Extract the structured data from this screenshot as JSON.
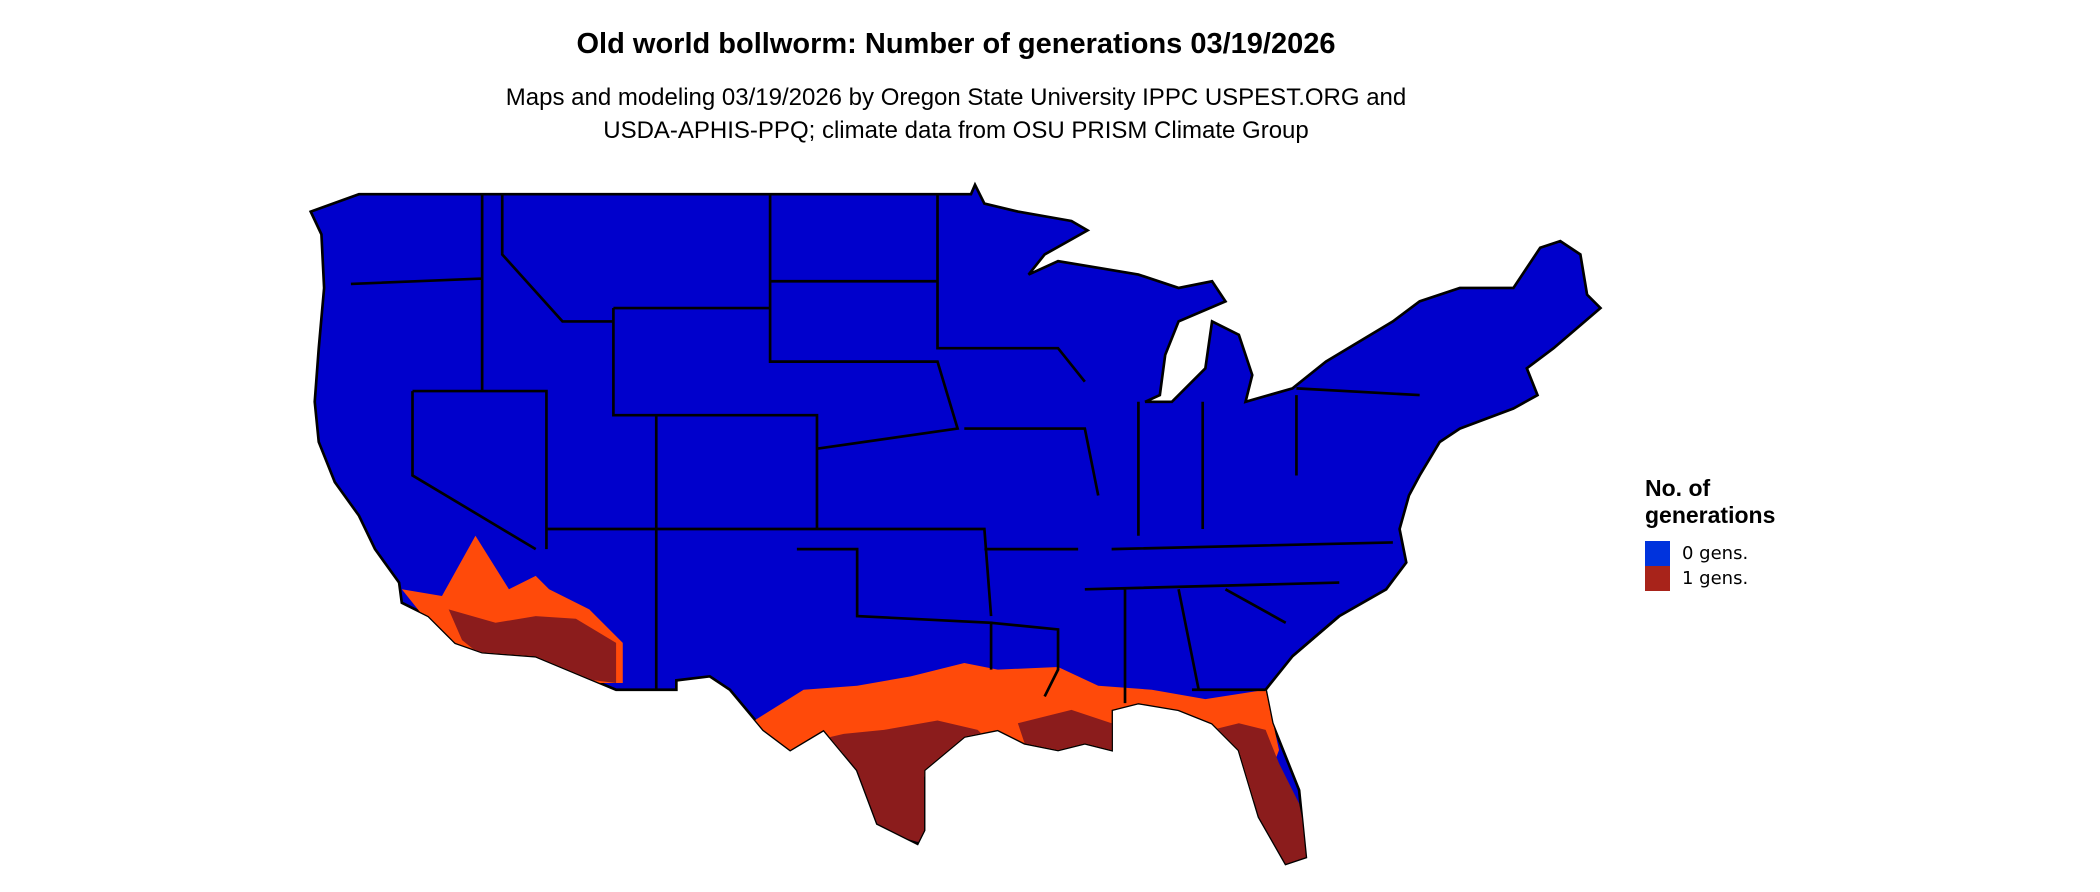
{
  "title": "Old world bollworm: Number of generations 03/19/2026",
  "subtitle": [
    "Maps and modeling 03/19/2026 by Oregon State University IPPC USPEST.ORG and",
    "USDA-APHIS-PPQ; climate data from OSU PRISM Climate Group"
  ],
  "legend": {
    "title": [
      "No. of",
      "generations"
    ],
    "items": [
      {
        "label": "0 gens.",
        "color": "#0033DD"
      },
      {
        "label": "1 gens.",
        "color": "#A8231A"
      }
    ]
  },
  "map_colors": {
    "zero": "#0000CC",
    "transition": "#FF4A0A",
    "one": "#8B1C1C",
    "border": "#000000"
  }
}
